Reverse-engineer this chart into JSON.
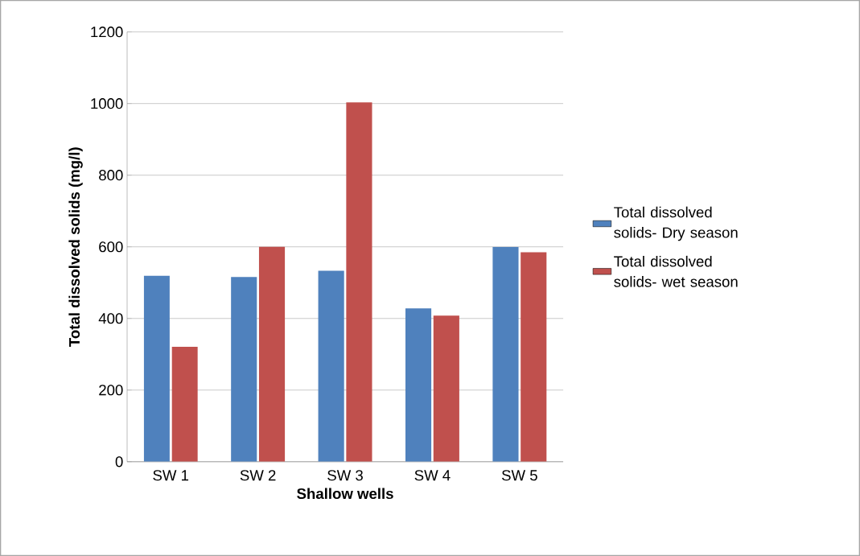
{
  "chart_data": {
    "type": "bar",
    "xlabel": "Shallow wells",
    "ylabel": "Total dissolved solids (mg/l)",
    "categories": [
      "SW 1",
      "SW 2",
      "SW 3",
      "SW 4",
      "SW 5"
    ],
    "series": [
      {
        "name": "Total dissolved solids- Dry season",
        "color": "#4f81bd",
        "values": [
          519,
          516,
          533,
          428,
          600
        ]
      },
      {
        "name": "Total dissolved solids- wet season",
        "color": "#c0504d",
        "values": [
          321,
          600,
          1003,
          408,
          585
        ]
      }
    ],
    "ylim": [
      0,
      1200
    ],
    "yticks": [
      0,
      200,
      400,
      600,
      800,
      1000,
      1200
    ],
    "grid": "y",
    "legend": "right"
  }
}
